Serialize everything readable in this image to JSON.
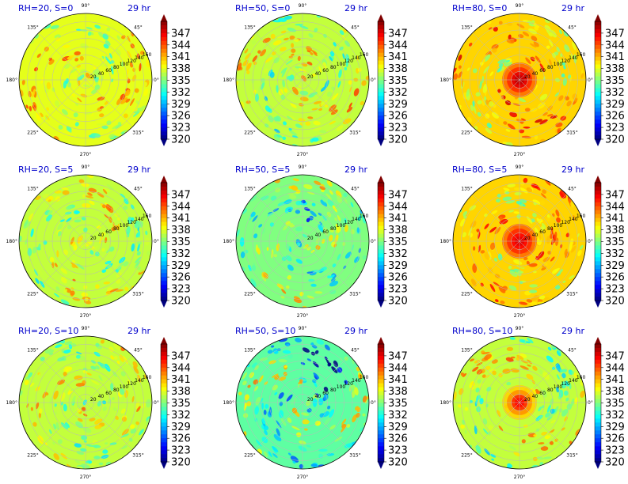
{
  "chart_data": {
    "type": "heatmap",
    "projection": "polar",
    "colormap": "jet",
    "colorbar": {
      "min": 320,
      "max": 350,
      "ticks": [
        320,
        323,
        326,
        329,
        332,
        335,
        338,
        341,
        344,
        347
      ],
      "extend": "both"
    },
    "angle_labels": [
      "0°",
      "45°",
      "90°",
      "135°",
      "180°",
      "225°",
      "270°",
      "315°"
    ],
    "radial_ticks": [
      "20",
      "40",
      "60",
      "80",
      "100",
      "120",
      "140",
      "160"
    ],
    "panels": [
      {
        "title": "RH=20, S=0",
        "time": "29 hr",
        "base_level": 338,
        "core_level": 338,
        "spiral_amp": 4,
        "blue_patch": 0
      },
      {
        "title": "RH=50, S=0",
        "time": "29 hr",
        "base_level": 337,
        "core_level": 337,
        "spiral_amp": 5,
        "blue_patch": 0
      },
      {
        "title": "RH=80, S=0",
        "time": "29 hr",
        "base_level": 340,
        "core_level": 348,
        "spiral_amp": 5,
        "blue_patch": 0
      },
      {
        "title": "RH=20, S=5",
        "time": "29 hr",
        "base_level": 337,
        "core_level": 338,
        "spiral_amp": 4,
        "blue_patch": 0
      },
      {
        "title": "RH=50, S=5",
        "time": "29 hr",
        "base_level": 335,
        "core_level": 336,
        "spiral_amp": 5,
        "blue_patch": 1
      },
      {
        "title": "RH=80, S=5",
        "time": "29 hr",
        "base_level": 340,
        "core_level": 347,
        "spiral_amp": 5,
        "blue_patch": 0
      },
      {
        "title": "RH=20, S=10",
        "time": "29 hr",
        "base_level": 337,
        "core_level": 338,
        "spiral_amp": 4,
        "blue_patch": 0
      },
      {
        "title": "RH=50, S=10",
        "time": "29 hr",
        "base_level": 334,
        "core_level": 336,
        "spiral_amp": 6,
        "blue_patch": 2
      },
      {
        "title": "RH=80, S=10",
        "time": "29 hr",
        "base_level": 337,
        "core_level": 346,
        "spiral_amp": 5,
        "blue_patch": 0
      }
    ]
  }
}
